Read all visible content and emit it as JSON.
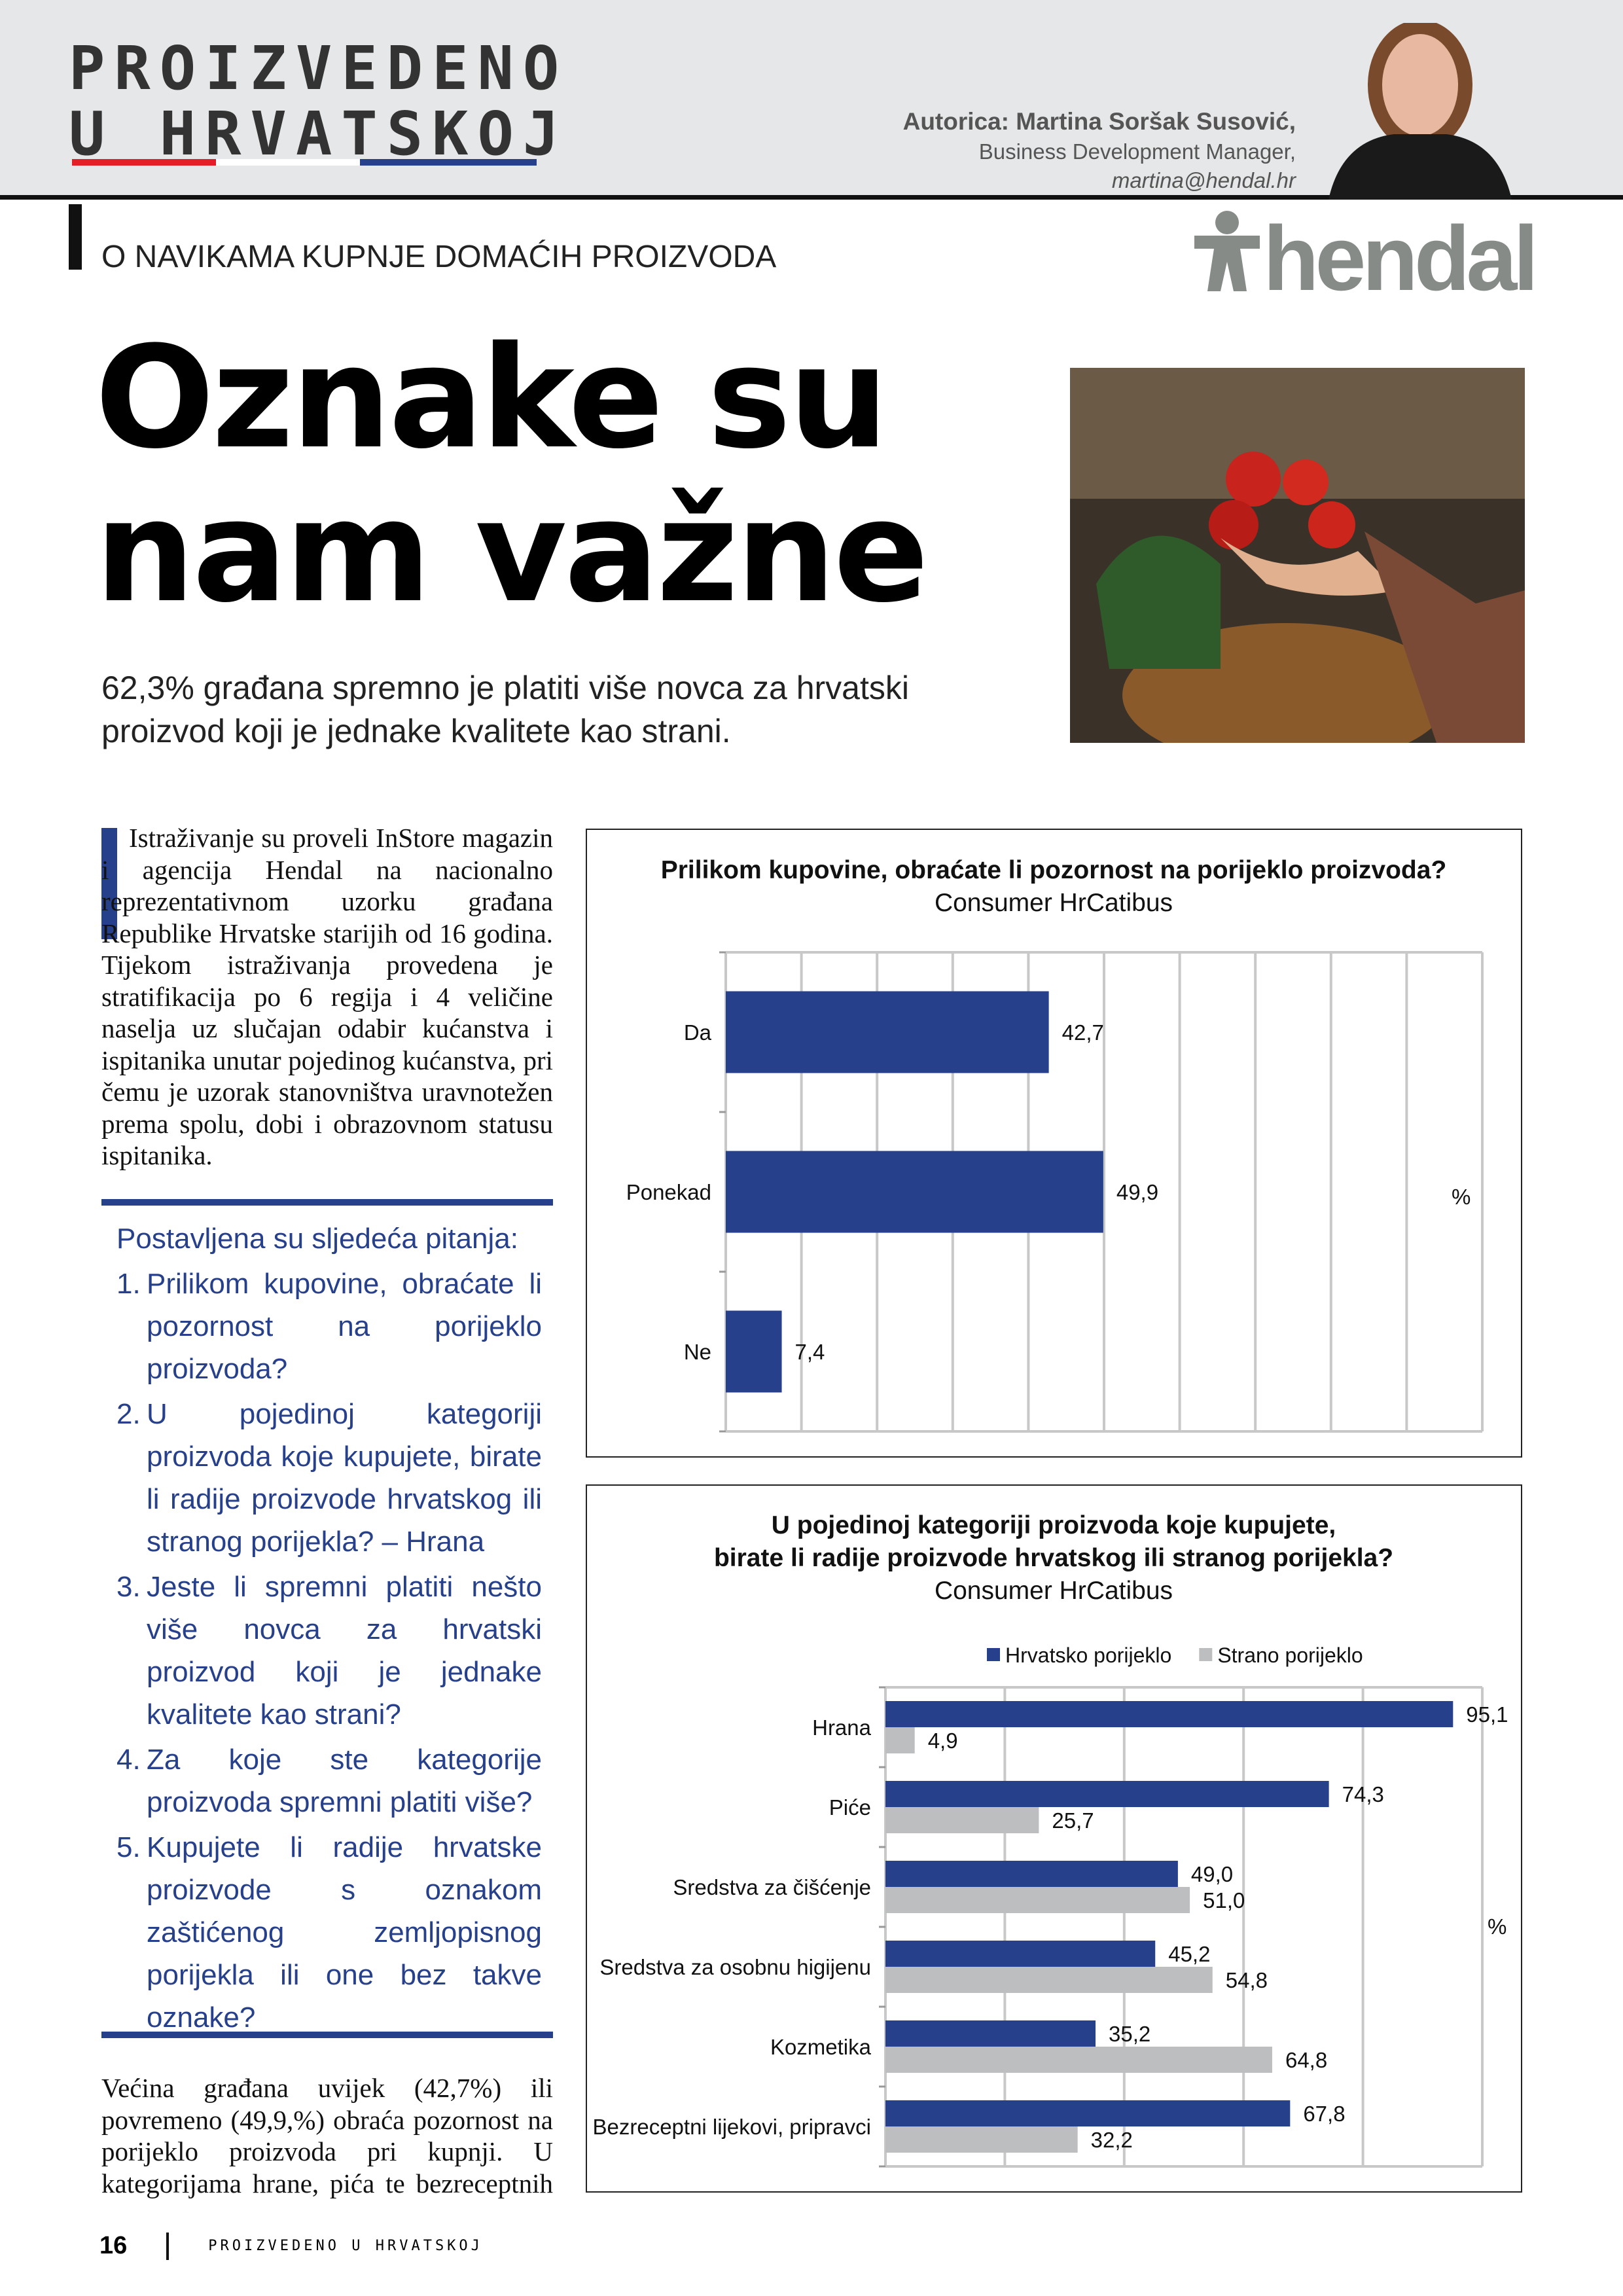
{
  "header": {
    "publication_logo": [
      "PROIZVEDENO",
      "U HRVATSKOJ"
    ],
    "author_name": "Autorica: Martina Soršak Susović,",
    "author_role": "Business Development Manager,",
    "author_email": "martina@hendal.hr",
    "logo_colors": [
      "#e41e26",
      "#ffffff",
      "#27408b"
    ]
  },
  "section_label": "O NAVIKAMA KUPNJE DOMAĆIH PROIZVODA",
  "brand_logo": "hendal",
  "headline": [
    "Oznake su",
    "nam važne"
  ],
  "lead": "62,3% građana spremno je platiti više novca za hrvatski proizvod koji je  jednake kvalitete kao strani.",
  "intro": "Istraživanje su proveli InStore magazin i agencija Hendal na nacionalno reprezentativnom uzorku građana Republike Hrvatske starijih od 16 godina. Tijekom istraživanja provedena je stratifikacija po 6 regija i 4 veličine naselja uz slučajan odabir kućanstva i ispitanika unutar pojedinog kućanstva, pri čemu je uzorak stanovništva uravnotežen prema spolu, dobi i obrazovnom statusu ispitanika.",
  "questions": {
    "heading": "Postavljena su sljedeća pitanja:",
    "items": [
      {
        "num": "1.",
        "text": "Prilikom kupovine, obraćate li pozornost na porijeklo proizvoda?"
      },
      {
        "num": "2.",
        "text": "U pojedinoj kategoriji proizvoda koje kupujete, birate li radije proizvode hrvatskog ili stranog porijekla? – Hrana"
      },
      {
        "num": "3.",
        "text": "Jeste li spremni platiti nešto više novca za hrvatski proizvod koji je  jednake kvalitete kao strani?"
      },
      {
        "num": "4.",
        "text": "Za koje ste kategorije proizvoda spremni platiti više?"
      },
      {
        "num": "5.",
        "text": "Kupujete li radije hrvatske proizvode s oznakom zaštićenog zemljopisnog porijekla ili one bez takve oznake?"
      }
    ]
  },
  "outro": "Većina građana uvijek (42,7%) ili povremeno (49,9,%) obraća pozornost na porijeklo proizvoda pri kupnji. U kategorijama hrane, pića te bezreceptnih",
  "footer": {
    "page": "16",
    "publication": "PROIZVEDENO U HRVATSKOJ"
  },
  "chart_data": [
    {
      "type": "bar",
      "orientation": "horizontal",
      "title": "Prilikom kupovine, obraćate li pozornost na porijeklo proizvoda?",
      "subtitle": "Consumer HrCatibus",
      "unit": "%",
      "categories": [
        "Da",
        "Ponekad",
        "Ne"
      ],
      "values": [
        42.7,
        49.9,
        7.4
      ],
      "labels": [
        "42,7",
        "49,9",
        "7,4"
      ],
      "xlim": [
        0,
        100
      ],
      "grid": true,
      "color": "#27408b"
    },
    {
      "type": "bar",
      "orientation": "horizontal",
      "title": [
        "U pojedinoj kategoriji proizvoda koje kupujete,",
        "birate li radije proizvode hrvatskog ili stranog porijekla?"
      ],
      "subtitle": "Consumer HrCatibus",
      "unit": "%",
      "legend": "top",
      "categories": [
        "Hrana",
        "Piće",
        "Sredstva za čišćenje",
        "Sredstva za osobnu higijenu",
        "Kozmetika",
        "Bezreceptni lijekovi, pripravci"
      ],
      "series": [
        {
          "name": "Hrvatsko porijeklo",
          "color": "#27408b",
          "values": [
            95.1,
            74.3,
            49.0,
            45.2,
            35.2,
            67.8
          ],
          "labels": [
            "95,1",
            "74,3",
            "49,0",
            "45,2",
            "35,2",
            "67,8"
          ]
        },
        {
          "name": "Strano porijeklo",
          "color": "#bcbec0",
          "values": [
            4.9,
            25.7,
            51.0,
            54.8,
            64.8,
            32.2
          ],
          "labels": [
            "4,9",
            "25,7",
            "51,0",
            "54,8",
            "64,8",
            "32,2"
          ]
        }
      ],
      "xlim": [
        0,
        100
      ],
      "grid": true
    }
  ]
}
